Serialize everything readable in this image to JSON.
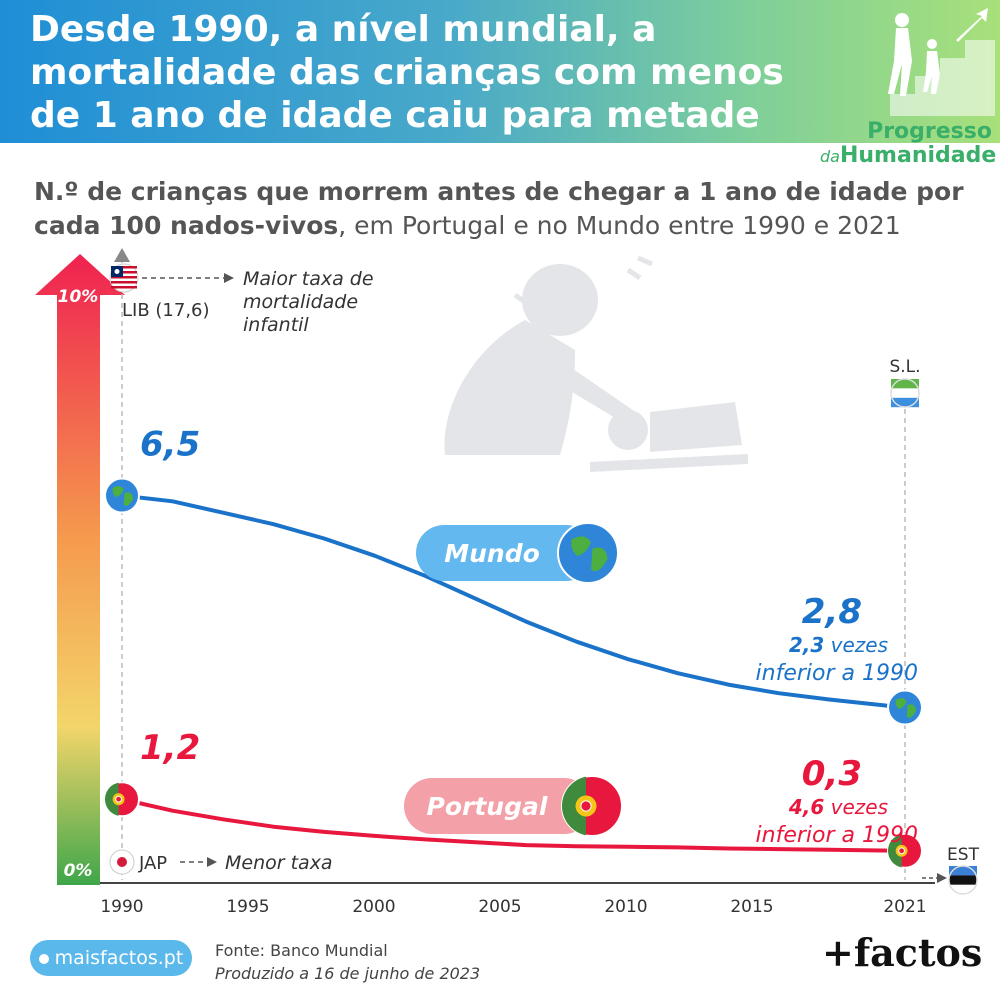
{
  "header": {
    "title": "Desde 1990, a nível mundial, a mortalidade das crianças com menos de 1 ano de idade caiu para metade",
    "brand_line1": "Progresso",
    "brand_da": "da",
    "brand_line2": "Humanidade"
  },
  "subtitle": {
    "bold": "N.º de crianças que morrem antes de chegar a 1 ano de idade por cada 100 nados-vivos",
    "rest": ", em Portugal e no Mundo entre 1990 e 2021"
  },
  "chart_data": {
    "type": "line",
    "x_ticks": [
      "1990",
      "1995",
      "2000",
      "2005",
      "2010",
      "2015",
      "2021"
    ],
    "scale_labels": {
      "top": "10%",
      "bottom": "0%"
    },
    "series": [
      {
        "name": "Mundo",
        "color": "#1a73c9",
        "points": [
          [
            1990,
            6.5
          ],
          [
            1992,
            6.4
          ],
          [
            1994,
            6.2
          ],
          [
            1996,
            6.0
          ],
          [
            1998,
            5.75
          ],
          [
            2000,
            5.45
          ],
          [
            2002,
            5.1
          ],
          [
            2004,
            4.7
          ],
          [
            2006,
            4.3
          ],
          [
            2008,
            3.95
          ],
          [
            2010,
            3.65
          ],
          [
            2012,
            3.4
          ],
          [
            2014,
            3.2
          ],
          [
            2016,
            3.05
          ],
          [
            2018,
            2.94
          ],
          [
            2021,
            2.8
          ]
        ],
        "start_label": "6,5",
        "end_label": "2,8",
        "end_note_bold": "2,3",
        "end_note_1": " vezes",
        "end_note_2": "inferior a 1990"
      },
      {
        "name": "Portugal",
        "color": "#e8173d",
        "points": [
          [
            1990,
            1.2
          ],
          [
            1992,
            1.0
          ],
          [
            1994,
            0.85
          ],
          [
            1996,
            0.72
          ],
          [
            1998,
            0.63
          ],
          [
            2000,
            0.56
          ],
          [
            2002,
            0.5
          ],
          [
            2004,
            0.45
          ],
          [
            2006,
            0.4
          ],
          [
            2008,
            0.38
          ],
          [
            2010,
            0.37
          ],
          [
            2012,
            0.36
          ],
          [
            2014,
            0.34
          ],
          [
            2016,
            0.33
          ],
          [
            2018,
            0.32
          ],
          [
            2021,
            0.3
          ]
        ],
        "start_label": "1,2",
        "end_label": "0,3",
        "end_note_bold": "4,6",
        "end_note_1": " vezes",
        "end_note_2": "inferior a 1990"
      }
    ],
    "annotations": {
      "max_country": "LIB (17,6)",
      "max_label_1": "Maior taxa de",
      "max_label_2": "mortalidade",
      "max_label_3": "infantil",
      "min_country": "JAP",
      "min_label": "Menor taxa",
      "max_2021": "S.L.",
      "min_2021": "EST"
    },
    "legend": [
      {
        "name": "Mundo",
        "color": "#64b8f0"
      },
      {
        "name": "Portugal",
        "color": "#f3a0a8"
      }
    ]
  },
  "footer": {
    "site": "maisfactos.pt",
    "source": "Fonte: Banco Mundial",
    "produced": "Produzido a 16 de junho de 2023",
    "logo": "+factos"
  }
}
